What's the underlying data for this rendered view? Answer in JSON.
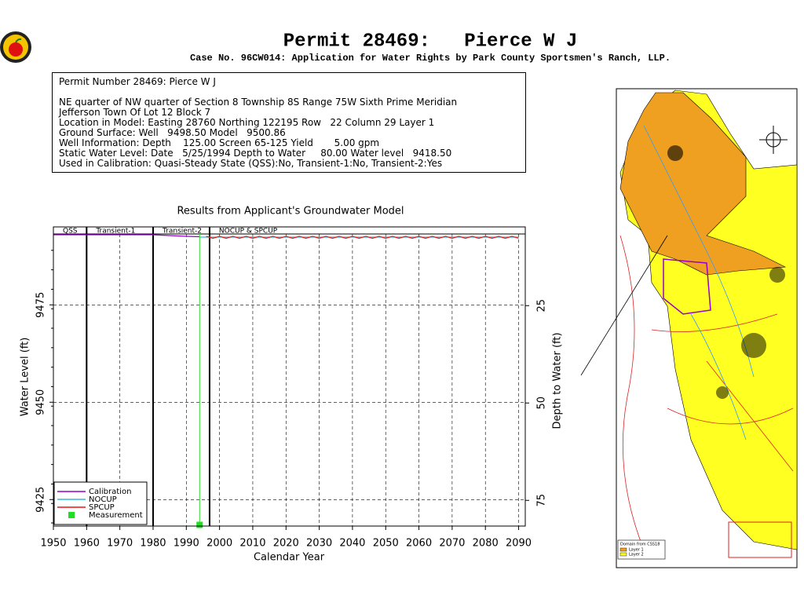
{
  "header": {
    "title": "Permit 28469:   Pierce W J",
    "subtitle": "Case No. 96CW014: Application for Water Rights by Park County Sportsmen's Ranch, LLP."
  },
  "info": {
    "heading": "Permit Number 28469: Pierce W J",
    "lines": [
      "NE quarter of NW quarter of Section 8 Township 8S Range 75W Sixth Prime Meridian",
      "Jefferson Town Of Lot 12 Block 7",
      "Location in Model: Easting 28760 Northing 122195 Row   22 Column 29 Layer 1",
      "Ground Surface: Well   9498.50 Model   9500.86",
      "Well Information: Depth    125.00 Screen 65-125 Yield       5.00 gpm",
      "Static Water Level: Date   5/25/1994 Depth to Water     80.00 Water level   9418.50",
      "Used in Calibration: Quasi-Steady State (QSS):No, Transient-1:No, Transient-2:Yes"
    ]
  },
  "chart_data": {
    "type": "line",
    "title": "Results from Applicant's Groundwater Model",
    "x_label": "Calendar Year",
    "y_label": "Water Level (ft)",
    "y2_label": "Depth to Water (ft)",
    "xlim": [
      1950,
      2092
    ],
    "xticks": [
      1950,
      1960,
      1970,
      1980,
      1990,
      2000,
      2010,
      2020,
      2030,
      2040,
      2050,
      2060,
      2070,
      2080,
      2090
    ],
    "ylim": [
      9418.2,
      9493.2
    ],
    "yticks": [
      9425,
      9450,
      9475
    ],
    "y2lim": [
      81.6,
      6.6
    ],
    "y2ticks": [
      25,
      50,
      75
    ],
    "grid": true,
    "legend_position": "lower left",
    "periods": [
      {
        "name": "QSS",
        "start": 1950,
        "end": 1960
      },
      {
        "name": "Transient-1",
        "start": 1960,
        "end": 1980
      },
      {
        "name": "Transient-2",
        "start": 1980,
        "end": 1997
      },
      {
        "name": "NOCUP & SPCUP",
        "start": 1997,
        "end": 2092
      }
    ],
    "series": [
      {
        "name": "Calibration",
        "color": "#9900cc",
        "x": [
          1950,
          1960,
          1970,
          1980,
          1985,
          1990,
          1994
        ],
        "values": [
          9493.0,
          9493.0,
          9493.0,
          9493.0,
          9492.8,
          9492.6,
          9492.5
        ]
      },
      {
        "name": "NOCUP",
        "color": "#33bbdd",
        "x": [
          1994,
          2090
        ],
        "values": [
          9492.4,
          9492.4
        ]
      },
      {
        "name": "SPCUP",
        "color": "#ee1111",
        "x": [
          1996,
          1998,
          2000,
          2002,
          2004,
          2006,
          2008,
          2010,
          2012,
          2014,
          2016,
          2018,
          2020,
          2022,
          2024,
          2026,
          2028,
          2030,
          2032,
          2034,
          2036,
          2038,
          2040,
          2042,
          2044,
          2046,
          2048,
          2050,
          2052,
          2054,
          2056,
          2058,
          2060,
          2062,
          2064,
          2066,
          2068,
          2070,
          2072,
          2074,
          2076,
          2078,
          2080,
          2082,
          2084,
          2086,
          2088,
          2090
        ],
        "values": [
          9492.6,
          9492.1,
          9492.6,
          9492.1,
          9492.6,
          9492.1,
          9492.6,
          9492.1,
          9492.6,
          9492.1,
          9492.6,
          9492.1,
          9492.6,
          9492.1,
          9492.6,
          9492.1,
          9492.6,
          9492.1,
          9492.6,
          9492.1,
          9492.6,
          9492.1,
          9492.6,
          9492.1,
          9492.6,
          9492.1,
          9492.6,
          9492.1,
          9492.6,
          9492.1,
          9492.6,
          9492.1,
          9492.6,
          9492.1,
          9492.6,
          9492.1,
          9492.6,
          9492.1,
          9492.6,
          9492.1,
          9492.6,
          9492.1,
          9492.6,
          9492.1,
          9492.6,
          9492.1,
          9492.6,
          9492.1
        ]
      }
    ],
    "measurement": {
      "name": "Measurement",
      "color": "#22dd22",
      "x": [
        1994
      ],
      "values": [
        9418.5
      ]
    }
  },
  "map": {
    "legend_title": "Domain from CSS18",
    "legend": [
      "Layer 1",
      "Layer 2"
    ]
  }
}
